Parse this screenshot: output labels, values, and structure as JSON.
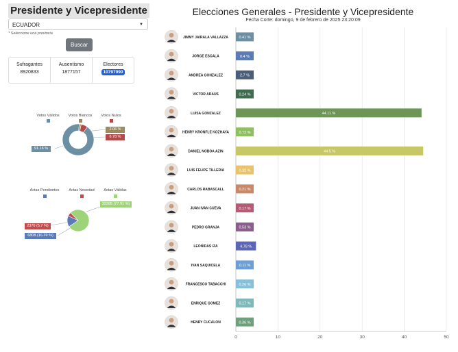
{
  "left": {
    "title": "Presidente y Vicepresidente",
    "province": {
      "value": "ECUADOR",
      "hint": "* Seleccione una provincia"
    },
    "search_button": "Buscar",
    "stats": [
      {
        "label": "Sufragantes",
        "value": "8920833"
      },
      {
        "label": "Ausentismo",
        "value": "1877157"
      },
      {
        "label": "Electores",
        "value": "10797990"
      }
    ]
  },
  "donut": {
    "legend": [
      {
        "label": "Votos Válidos",
        "color": "#6d8fa3"
      },
      {
        "label": "Votos Blancos",
        "color": "#9c8b5e"
      },
      {
        "label": "Votos Nulos",
        "color": "#b24a4a"
      }
    ],
    "slices": [
      91.16,
      2.06,
      6.78
    ],
    "labels": [
      "91.16 %",
      "2.06 %",
      "6.78 %"
    ]
  },
  "pie": {
    "legend": [
      {
        "label": "Actas Pendientes",
        "color": "#5a7bb8"
      },
      {
        "label": "Actas Novedad",
        "color": "#c24b4b"
      },
      {
        "label": "Actas Válidas",
        "color": "#9fd37a"
      }
    ],
    "slices": [
      16.39,
      5.7,
      77.91
    ],
    "labels": [
      "6808 (16.39 %)",
      "2370 (5.7 %)",
      "32395 (77.91 %)"
    ]
  },
  "chart_title": "Elecciones Generales - Presidente y Vicepresidente",
  "chart_subtitle": "Fecha Corte: domingo, 9 de febrero de 2025 23:20:09",
  "chart_data": {
    "type": "bar",
    "orientation": "horizontal",
    "categories": [
      "JIMMY JAIRALA VALLAZZA",
      "JORGE ESCALA",
      "ANDREA GONZALEZ",
      "VICTOR ARAUS",
      "LUISA GONZALEZ",
      "HENRY KRONFLE KOZHAYA",
      "DANIEL NOBOA AZIN",
      "LUIS FELIPE TILLERIA",
      "CARLOS RABASCALL",
      "JUAN IVAN CUEVA",
      "PEDRO GRANJA",
      "LEONIDAS IZA",
      "IVAN SAQUICELA",
      "FRANCESCO TABACCHI",
      "ENRIQUE GOMEZ",
      "HENRY CUCALON"
    ],
    "values": [
      0.41,
      0.4,
      2.7,
      0.24,
      44.11,
      0.72,
      44.5,
      0.32,
      0.21,
      0.17,
      0.53,
      4.78,
      0.11,
      0.26,
      0.17,
      0.36
    ],
    "value_labels": [
      "0.41 %",
      "0.4 %",
      "2.7 %",
      "0.24 %",
      "44.11 %",
      "0.72 %",
      "44.5 %",
      "0.32 %",
      "0.21 %",
      "0.17 %",
      "0.53 %",
      "4.78 %",
      "0.11 %",
      "0.26 %",
      "0.17 %",
      "0.36 %"
    ],
    "colors": [
      "#6d8fa3",
      "#5a7bb8",
      "#4a5e7a",
      "#3f6b4e",
      "#6d9656",
      "#8fc060",
      "#c7c766",
      "#e8c36a",
      "#c8896a",
      "#b85a75",
      "#8b5c8e",
      "#5b66b5",
      "#6d9fd6",
      "#86c0d9",
      "#7fb8b8",
      "#6fa07d"
    ],
    "xlim": [
      0,
      50
    ],
    "xticks": [
      "0",
      "10",
      "20",
      "30",
      "40",
      "50"
    ],
    "grid": true
  }
}
